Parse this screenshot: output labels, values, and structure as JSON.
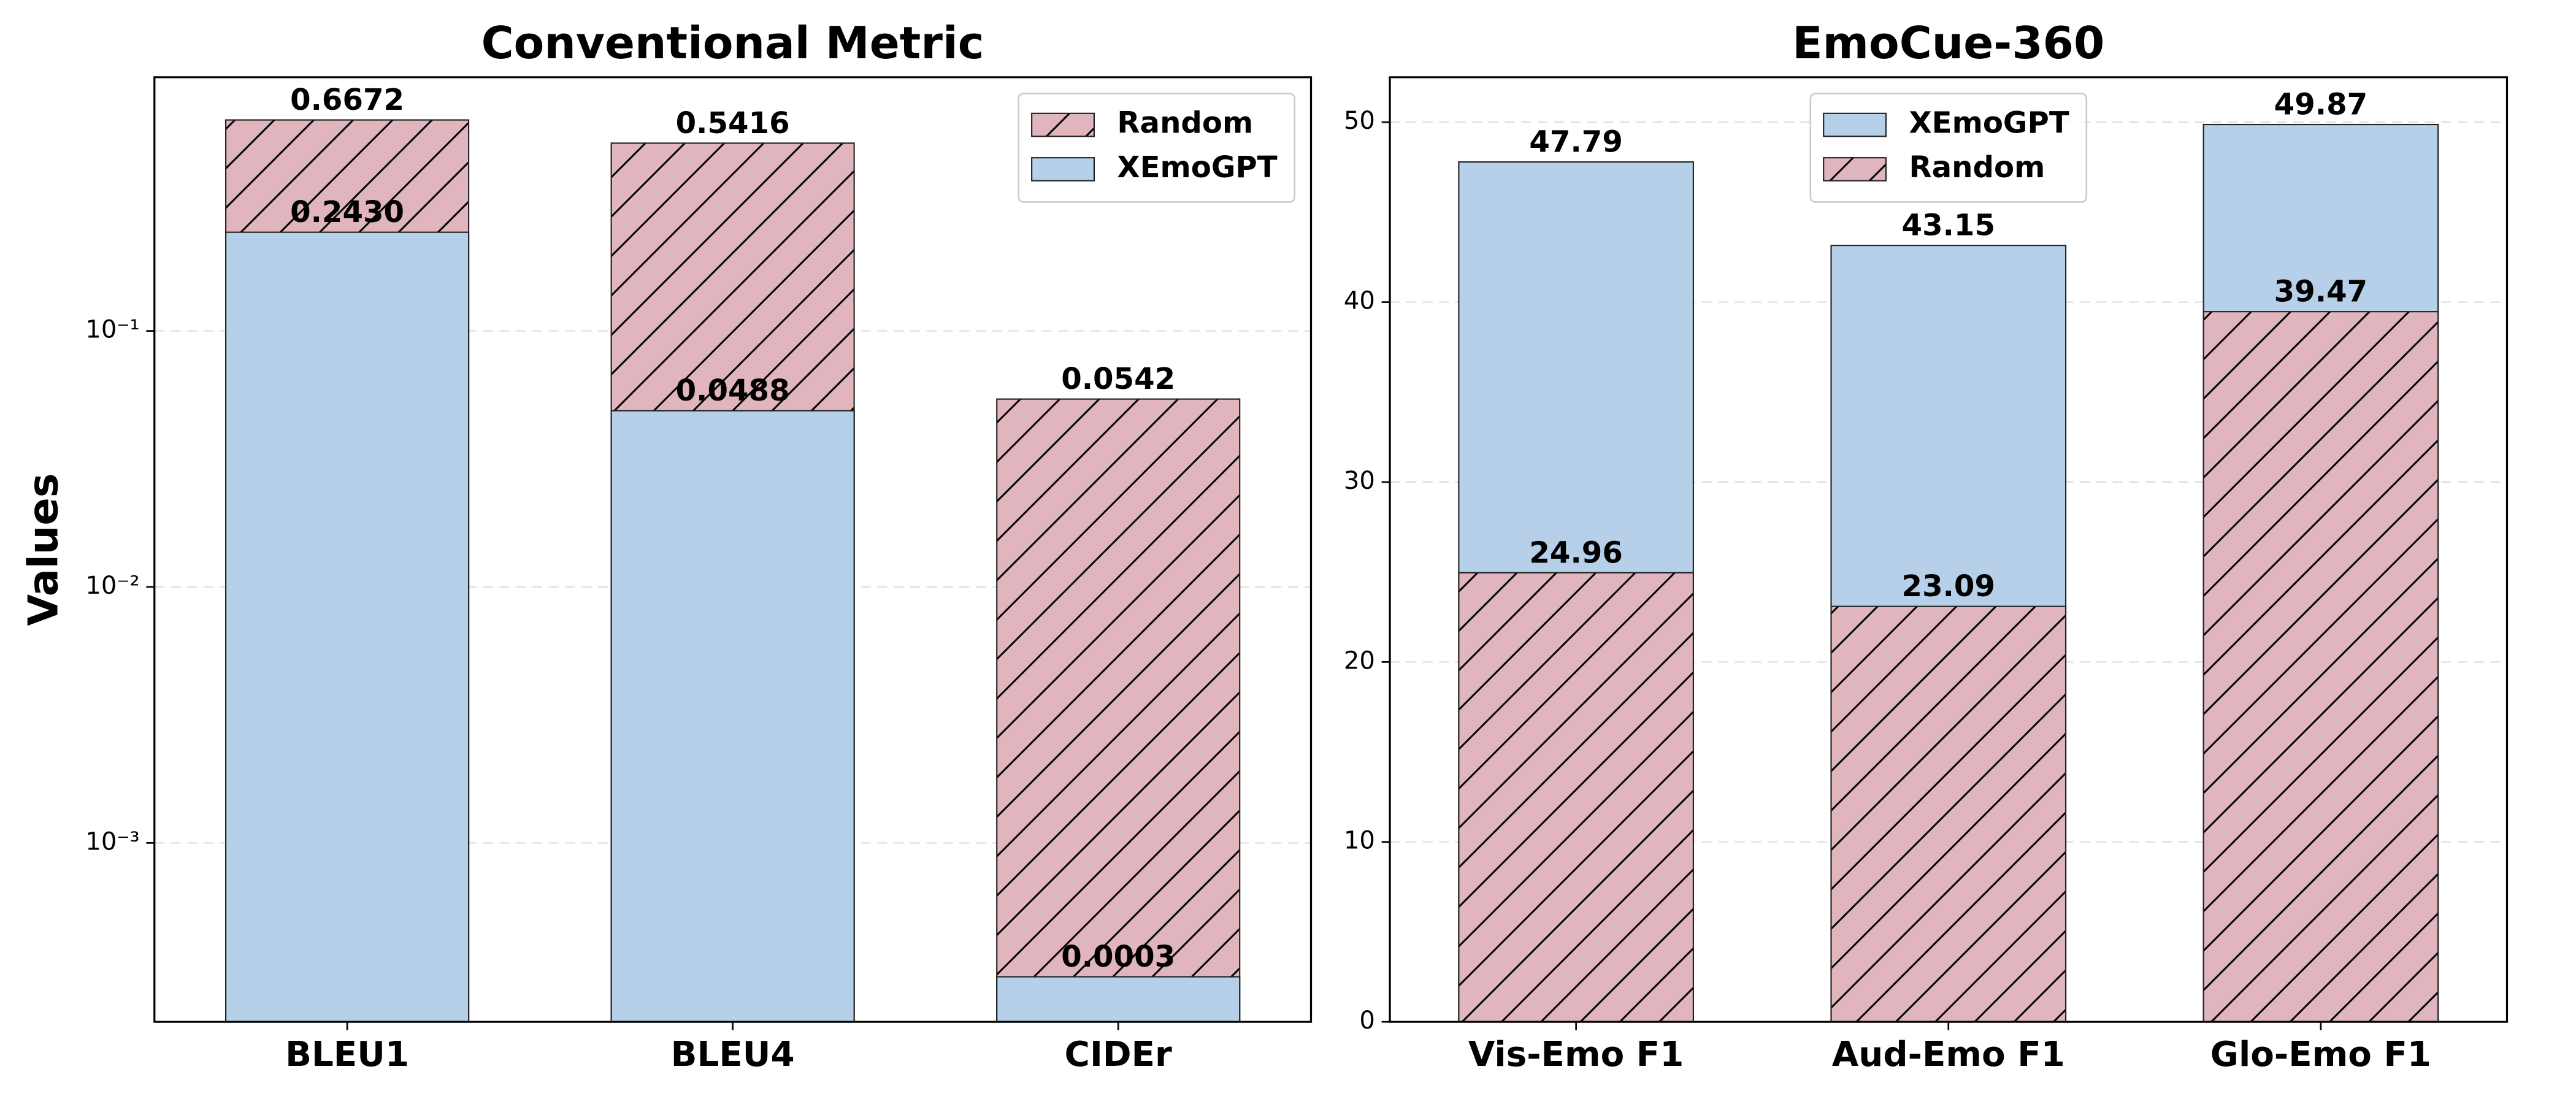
{
  "chart_data": [
    {
      "type": "bar",
      "title": "Conventional Metric",
      "ylabel": "Values",
      "yscale": "log",
      "categories": [
        "BLEU1",
        "BLEU4",
        "CIDEr"
      ],
      "series": [
        {
          "name": "Random",
          "color": "#e0b5bd",
          "hatch": "/",
          "values": [
            0.6672,
            0.5416,
            0.0542
          ],
          "value_labels": [
            "0.6672",
            "0.5416",
            "0.0542"
          ]
        },
        {
          "name": "XEmoGPT",
          "color": "#b5d0e8",
          "values": [
            0.243,
            0.0488,
            0.0003
          ],
          "value_labels": [
            "0.2430",
            "0.0488",
            "0.0003"
          ]
        }
      ],
      "ylim": [
        0.0002,
        0.98
      ],
      "yticks": [
        {
          "value": 0.001,
          "label": "10⁻³"
        },
        {
          "value": 0.01,
          "label": "10⁻²"
        },
        {
          "value": 0.1,
          "label": "10⁻¹"
        }
      ],
      "grid": true,
      "legend": "upper right"
    },
    {
      "type": "bar",
      "title": "EmoCue-360",
      "categories": [
        "Vis-Emo F1",
        "Aud-Emo F1",
        "Glo-Emo F1"
      ],
      "series": [
        {
          "name": "XEmoGPT",
          "color": "#b5d0e8",
          "values": [
            47.79,
            43.15,
            49.87
          ],
          "value_labels": [
            "47.79",
            "43.15",
            "49.87"
          ]
        },
        {
          "name": "Random",
          "color": "#e0b5bd",
          "hatch": "/",
          "values": [
            24.96,
            23.09,
            39.47
          ],
          "value_labels": [
            "24.96",
            "23.09",
            "39.47"
          ]
        }
      ],
      "ylim": [
        0,
        52.5
      ],
      "yticks": [
        0,
        10,
        20,
        30,
        40,
        50
      ],
      "grid": true,
      "legend": "upper center"
    }
  ]
}
